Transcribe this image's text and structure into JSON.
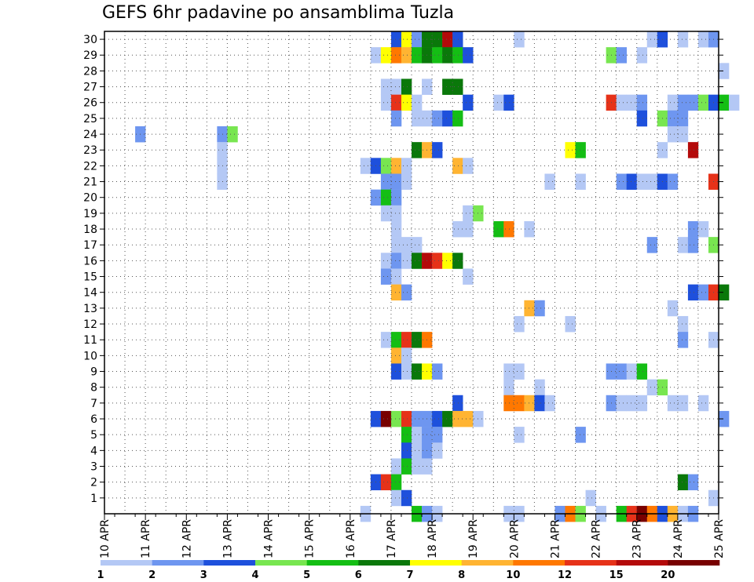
{
  "chart_data": {
    "type": "heatmap",
    "title": "GEFS 6hr padavine po ansamblima Tuzla",
    "xlabel": "",
    "ylabel": "",
    "x_ticks": [
      "10 APR",
      "11 APR",
      "12 APR",
      "13 APR",
      "14 APR",
      "15 APR",
      "16 APR",
      "17 APR",
      "18 APR",
      "19 APR",
      "20 APR",
      "21 APR",
      "22 APR",
      "23 APR",
      "24 APR",
      "25 APR"
    ],
    "x_start_day": 10,
    "steps_per_day": 4,
    "y_ticks": [
      1,
      2,
      3,
      4,
      5,
      6,
      7,
      8,
      9,
      10,
      11,
      12,
      13,
      14,
      15,
      16,
      17,
      18,
      19,
      20,
      21,
      22,
      23,
      24,
      25,
      26,
      27,
      28,
      29,
      30
    ],
    "ylim": [
      0,
      30
    ],
    "grid": true,
    "legend_position": "bottom",
    "colorbar": {
      "labels": [
        "1",
        "2",
        "3",
        "4",
        "5",
        "6",
        "7",
        "8",
        "10",
        "12",
        "15",
        "20"
      ],
      "colors": [
        "#b4c8f5",
        "#6e96f0",
        "#1e50dc",
        "#78e650",
        "#14be14",
        "#0a780a",
        "#ffff00",
        "#ffb432",
        "#ff7800",
        "#e63219",
        "#b40a0a",
        "#780000"
      ]
    },
    "cells": [
      {
        "d": 17.0,
        "m": 30,
        "c": 3
      },
      {
        "d": 17.25,
        "m": 30,
        "c": 7
      },
      {
        "d": 17.5,
        "m": 30,
        "c": 2
      },
      {
        "d": 17.75,
        "m": 30,
        "c": 6
      },
      {
        "d": 18.0,
        "m": 30,
        "c": 6
      },
      {
        "d": 18.25,
        "m": 30,
        "c": 11
      },
      {
        "d": 18.5,
        "m": 30,
        "c": 3
      },
      {
        "d": 20.0,
        "m": 30,
        "c": 1
      },
      {
        "d": 23.25,
        "m": 30,
        "c": 1
      },
      {
        "d": 23.5,
        "m": 30,
        "c": 3
      },
      {
        "d": 24.0,
        "m": 30,
        "c": 1
      },
      {
        "d": 24.5,
        "m": 30,
        "c": 1
      },
      {
        "d": 24.75,
        "m": 30,
        "c": 2
      },
      {
        "d": 16.5,
        "m": 29,
        "c": 1
      },
      {
        "d": 16.75,
        "m": 29,
        "c": 7
      },
      {
        "d": 17.0,
        "m": 29,
        "c": 9
      },
      {
        "d": 17.25,
        "m": 29,
        "c": 8
      },
      {
        "d": 17.5,
        "m": 29,
        "c": 5
      },
      {
        "d": 17.75,
        "m": 29,
        "c": 6
      },
      {
        "d": 18.0,
        "m": 29,
        "c": 5
      },
      {
        "d": 18.25,
        "m": 29,
        "c": 6
      },
      {
        "d": 18.5,
        "m": 29,
        "c": 5
      },
      {
        "d": 18.75,
        "m": 29,
        "c": 3
      },
      {
        "d": 22.25,
        "m": 29,
        "c": 4
      },
      {
        "d": 22.5,
        "m": 29,
        "c": 2
      },
      {
        "d": 23.0,
        "m": 29,
        "c": 1
      },
      {
        "d": 25.0,
        "m": 28,
        "c": 1
      },
      {
        "d": 16.75,
        "m": 27,
        "c": 1
      },
      {
        "d": 17.0,
        "m": 27,
        "c": 1
      },
      {
        "d": 17.25,
        "m": 27,
        "c": 6
      },
      {
        "d": 17.75,
        "m": 27,
        "c": 1
      },
      {
        "d": 18.25,
        "m": 27,
        "c": 6
      },
      {
        "d": 18.5,
        "m": 27,
        "c": 6
      },
      {
        "d": 16.75,
        "m": 26,
        "c": 1
      },
      {
        "d": 17.0,
        "m": 26,
        "c": 10
      },
      {
        "d": 17.25,
        "m": 26,
        "c": 7
      },
      {
        "d": 17.5,
        "m": 26,
        "c": 1
      },
      {
        "d": 18.75,
        "m": 26,
        "c": 3
      },
      {
        "d": 19.5,
        "m": 26,
        "c": 1
      },
      {
        "d": 19.75,
        "m": 26,
        "c": 3
      },
      {
        "d": 22.25,
        "m": 26,
        "c": 10
      },
      {
        "d": 22.5,
        "m": 26,
        "c": 1
      },
      {
        "d": 22.75,
        "m": 26,
        "c": 1
      },
      {
        "d": 23.0,
        "m": 26,
        "c": 2
      },
      {
        "d": 23.75,
        "m": 26,
        "c": 1
      },
      {
        "d": 24.0,
        "m": 26,
        "c": 2
      },
      {
        "d": 24.25,
        "m": 26,
        "c": 2
      },
      {
        "d": 24.5,
        "m": 26,
        "c": 4
      },
      {
        "d": 24.75,
        "m": 26,
        "c": 3
      },
      {
        "d": 25.0,
        "m": 26,
        "c": 5
      },
      {
        "d": 25.25,
        "m": 26,
        "c": 1
      },
      {
        "d": 17.0,
        "m": 25,
        "c": 2
      },
      {
        "d": 17.5,
        "m": 25,
        "c": 1
      },
      {
        "d": 17.75,
        "m": 25,
        "c": 1
      },
      {
        "d": 18.0,
        "m": 25,
        "c": 2
      },
      {
        "d": 18.25,
        "m": 25,
        "c": 3
      },
      {
        "d": 18.5,
        "m": 25,
        "c": 5
      },
      {
        "d": 23.0,
        "m": 25,
        "c": 3
      },
      {
        "d": 23.5,
        "m": 25,
        "c": 4
      },
      {
        "d": 23.75,
        "m": 25,
        "c": 2
      },
      {
        "d": 24.0,
        "m": 25,
        "c": 2
      },
      {
        "d": 10.75,
        "m": 24,
        "c": 2
      },
      {
        "d": 12.75,
        "m": 24,
        "c": 2
      },
      {
        "d": 13.0,
        "m": 24,
        "c": 4
      },
      {
        "d": 23.75,
        "m": 24,
        "c": 1
      },
      {
        "d": 24.0,
        "m": 24,
        "c": 1
      },
      {
        "d": 12.75,
        "m": 23,
        "c": 1
      },
      {
        "d": 17.5,
        "m": 23,
        "c": 6
      },
      {
        "d": 17.75,
        "m": 23,
        "c": 8
      },
      {
        "d": 18.0,
        "m": 23,
        "c": 3
      },
      {
        "d": 21.25,
        "m": 23,
        "c": 7
      },
      {
        "d": 21.5,
        "m": 23,
        "c": 5
      },
      {
        "d": 23.5,
        "m": 23,
        "c": 1
      },
      {
        "d": 24.25,
        "m": 23,
        "c": 11
      },
      {
        "d": 12.75,
        "m": 22,
        "c": 1
      },
      {
        "d": 16.25,
        "m": 22,
        "c": 1
      },
      {
        "d": 16.5,
        "m": 22,
        "c": 3
      },
      {
        "d": 16.75,
        "m": 22,
        "c": 4
      },
      {
        "d": 17.0,
        "m": 22,
        "c": 8
      },
      {
        "d": 17.25,
        "m": 22,
        "c": 1
      },
      {
        "d": 18.5,
        "m": 22,
        "c": 8
      },
      {
        "d": 18.75,
        "m": 22,
        "c": 1
      },
      {
        "d": 12.75,
        "m": 21,
        "c": 1
      },
      {
        "d": 16.75,
        "m": 21,
        "c": 2
      },
      {
        "d": 17.0,
        "m": 21,
        "c": 2
      },
      {
        "d": 17.25,
        "m": 21,
        "c": 1
      },
      {
        "d": 20.75,
        "m": 21,
        "c": 1
      },
      {
        "d": 21.5,
        "m": 21,
        "c": 1
      },
      {
        "d": 22.5,
        "m": 21,
        "c": 2
      },
      {
        "d": 22.75,
        "m": 21,
        "c": 3
      },
      {
        "d": 23.0,
        "m": 21,
        "c": 1
      },
      {
        "d": 23.25,
        "m": 21,
        "c": 1
      },
      {
        "d": 23.5,
        "m": 21,
        "c": 3
      },
      {
        "d": 23.75,
        "m": 21,
        "c": 2
      },
      {
        "d": 24.75,
        "m": 21,
        "c": 10
      },
      {
        "d": 16.5,
        "m": 20,
        "c": 2
      },
      {
        "d": 16.75,
        "m": 20,
        "c": 5
      },
      {
        "d": 17.0,
        "m": 20,
        "c": 2
      },
      {
        "d": 16.75,
        "m": 19,
        "c": 1
      },
      {
        "d": 17.0,
        "m": 19,
        "c": 1
      },
      {
        "d": 18.75,
        "m": 19,
        "c": 1
      },
      {
        "d": 19.0,
        "m": 19,
        "c": 4
      },
      {
        "d": 17.0,
        "m": 18,
        "c": 1
      },
      {
        "d": 18.5,
        "m": 18,
        "c": 1
      },
      {
        "d": 18.75,
        "m": 18,
        "c": 1
      },
      {
        "d": 19.5,
        "m": 18,
        "c": 5
      },
      {
        "d": 19.75,
        "m": 18,
        "c": 9
      },
      {
        "d": 20.25,
        "m": 18,
        "c": 1
      },
      {
        "d": 24.25,
        "m": 18,
        "c": 2
      },
      {
        "d": 24.5,
        "m": 18,
        "c": 1
      },
      {
        "d": 17.0,
        "m": 17,
        "c": 1
      },
      {
        "d": 17.25,
        "m": 17,
        "c": 1
      },
      {
        "d": 17.5,
        "m": 17,
        "c": 1
      },
      {
        "d": 23.25,
        "m": 17,
        "c": 2
      },
      {
        "d": 24.0,
        "m": 17,
        "c": 1
      },
      {
        "d": 24.25,
        "m": 17,
        "c": 2
      },
      {
        "d": 24.75,
        "m": 17,
        "c": 4
      },
      {
        "d": 16.75,
        "m": 16,
        "c": 1
      },
      {
        "d": 17.0,
        "m": 16,
        "c": 2
      },
      {
        "d": 17.25,
        "m": 16,
        "c": 1
      },
      {
        "d": 17.5,
        "m": 16,
        "c": 6
      },
      {
        "d": 17.75,
        "m": 16,
        "c": 11
      },
      {
        "d": 18.0,
        "m": 16,
        "c": 10
      },
      {
        "d": 18.25,
        "m": 16,
        "c": 7
      },
      {
        "d": 18.5,
        "m": 16,
        "c": 6
      },
      {
        "d": 16.75,
        "m": 15,
        "c": 2
      },
      {
        "d": 17.0,
        "m": 15,
        "c": 1
      },
      {
        "d": 18.75,
        "m": 15,
        "c": 1
      },
      {
        "d": 17.0,
        "m": 14,
        "c": 8
      },
      {
        "d": 17.25,
        "m": 14,
        "c": 2
      },
      {
        "d": 24.25,
        "m": 14,
        "c": 3
      },
      {
        "d": 24.5,
        "m": 14,
        "c": 2
      },
      {
        "d": 24.75,
        "m": 14,
        "c": 10
      },
      {
        "d": 25.0,
        "m": 14,
        "c": 6
      },
      {
        "d": 20.25,
        "m": 13,
        "c": 8
      },
      {
        "d": 20.5,
        "m": 13,
        "c": 2
      },
      {
        "d": 23.75,
        "m": 13,
        "c": 1
      },
      {
        "d": 20.0,
        "m": 12,
        "c": 1
      },
      {
        "d": 21.25,
        "m": 12,
        "c": 1
      },
      {
        "d": 24.0,
        "m": 12,
        "c": 1
      },
      {
        "d": 16.75,
        "m": 11,
        "c": 1
      },
      {
        "d": 17.0,
        "m": 11,
        "c": 5
      },
      {
        "d": 17.25,
        "m": 11,
        "c": 10
      },
      {
        "d": 17.5,
        "m": 11,
        "c": 6
      },
      {
        "d": 17.75,
        "m": 11,
        "c": 9
      },
      {
        "d": 24.0,
        "m": 11,
        "c": 2
      },
      {
        "d": 24.75,
        "m": 11,
        "c": 1
      },
      {
        "d": 17.0,
        "m": 10,
        "c": 8
      },
      {
        "d": 17.25,
        "m": 10,
        "c": 1
      },
      {
        "d": 17.0,
        "m": 9,
        "c": 3
      },
      {
        "d": 17.25,
        "m": 9,
        "c": 1
      },
      {
        "d": 17.5,
        "m": 9,
        "c": 6
      },
      {
        "d": 17.75,
        "m": 9,
        "c": 7
      },
      {
        "d": 18.0,
        "m": 9,
        "c": 2
      },
      {
        "d": 19.75,
        "m": 9,
        "c": 1
      },
      {
        "d": 20.0,
        "m": 9,
        "c": 1
      },
      {
        "d": 22.25,
        "m": 9,
        "c": 2
      },
      {
        "d": 22.5,
        "m": 9,
        "c": 2
      },
      {
        "d": 22.75,
        "m": 9,
        "c": 1
      },
      {
        "d": 23.0,
        "m": 9,
        "c": 5
      },
      {
        "d": 19.75,
        "m": 8,
        "c": 1
      },
      {
        "d": 20.5,
        "m": 8,
        "c": 1
      },
      {
        "d": 23.25,
        "m": 8,
        "c": 1
      },
      {
        "d": 23.5,
        "m": 8,
        "c": 4
      },
      {
        "d": 18.5,
        "m": 7,
        "c": 3
      },
      {
        "d": 19.75,
        "m": 7,
        "c": 9
      },
      {
        "d": 20.0,
        "m": 7,
        "c": 9
      },
      {
        "d": 20.25,
        "m": 7,
        "c": 8
      },
      {
        "d": 20.5,
        "m": 7,
        "c": 3
      },
      {
        "d": 20.75,
        "m": 7,
        "c": 1
      },
      {
        "d": 22.25,
        "m": 7,
        "c": 2
      },
      {
        "d": 22.5,
        "m": 7,
        "c": 1
      },
      {
        "d": 22.75,
        "m": 7,
        "c": 1
      },
      {
        "d": 23.0,
        "m": 7,
        "c": 1
      },
      {
        "d": 23.75,
        "m": 7,
        "c": 1
      },
      {
        "d": 24.0,
        "m": 7,
        "c": 1
      },
      {
        "d": 24.5,
        "m": 7,
        "c": 1
      },
      {
        "d": 16.5,
        "m": 6,
        "c": 3
      },
      {
        "d": 16.75,
        "m": 6,
        "c": 12
      },
      {
        "d": 17.0,
        "m": 6,
        "c": 4
      },
      {
        "d": 17.25,
        "m": 6,
        "c": 10
      },
      {
        "d": 17.5,
        "m": 6,
        "c": 2
      },
      {
        "d": 17.75,
        "m": 6,
        "c": 2
      },
      {
        "d": 18.0,
        "m": 6,
        "c": 3
      },
      {
        "d": 18.25,
        "m": 6,
        "c": 6
      },
      {
        "d": 18.5,
        "m": 6,
        "c": 8
      },
      {
        "d": 18.75,
        "m": 6,
        "c": 8
      },
      {
        "d": 19.0,
        "m": 6,
        "c": 1
      },
      {
        "d": 25.0,
        "m": 6,
        "c": 2
      },
      {
        "d": 17.25,
        "m": 5,
        "c": 5
      },
      {
        "d": 17.5,
        "m": 5,
        "c": 1
      },
      {
        "d": 17.75,
        "m": 5,
        "c": 2
      },
      {
        "d": 18.0,
        "m": 5,
        "c": 2
      },
      {
        "d": 20.0,
        "m": 5,
        "c": 1
      },
      {
        "d": 21.5,
        "m": 5,
        "c": 2
      },
      {
        "d": 17.25,
        "m": 4,
        "c": 3
      },
      {
        "d": 17.5,
        "m": 4,
        "c": 1
      },
      {
        "d": 17.75,
        "m": 4,
        "c": 2
      },
      {
        "d": 18.0,
        "m": 4,
        "c": 1
      },
      {
        "d": 17.0,
        "m": 3,
        "c": 1
      },
      {
        "d": 17.25,
        "m": 3,
        "c": 5
      },
      {
        "d": 17.5,
        "m": 3,
        "c": 1
      },
      {
        "d": 17.75,
        "m": 3,
        "c": 1
      },
      {
        "d": 16.5,
        "m": 2,
        "c": 3
      },
      {
        "d": 16.75,
        "m": 2,
        "c": 10
      },
      {
        "d": 17.0,
        "m": 2,
        "c": 5
      },
      {
        "d": 24.0,
        "m": 2,
        "c": 6
      },
      {
        "d": 24.25,
        "m": 2,
        "c": 2
      },
      {
        "d": 17.0,
        "m": 1,
        "c": 1
      },
      {
        "d": 17.25,
        "m": 1,
        "c": 3
      },
      {
        "d": 21.75,
        "m": 1,
        "c": 1
      },
      {
        "d": 24.75,
        "m": 1,
        "c": 1
      },
      {
        "d": 16.25,
        "m": 0,
        "c": 1
      },
      {
        "d": 17.5,
        "m": 0,
        "c": 5
      },
      {
        "d": 17.75,
        "m": 0,
        "c": 2
      },
      {
        "d": 18.0,
        "m": 0,
        "c": 1
      },
      {
        "d": 19.75,
        "m": 0,
        "c": 1
      },
      {
        "d": 20.0,
        "m": 0,
        "c": 1
      },
      {
        "d": 21.0,
        "m": 0,
        "c": 2
      },
      {
        "d": 21.25,
        "m": 0,
        "c": 9
      },
      {
        "d": 21.5,
        "m": 0,
        "c": 4
      },
      {
        "d": 22.0,
        "m": 0,
        "c": 1
      },
      {
        "d": 22.5,
        "m": 0,
        "c": 5
      },
      {
        "d": 22.75,
        "m": 0,
        "c": 10
      },
      {
        "d": 23.0,
        "m": 0,
        "c": 12
      },
      {
        "d": 23.25,
        "m": 0,
        "c": 9
      },
      {
        "d": 23.5,
        "m": 0,
        "c": 3
      },
      {
        "d": 23.75,
        "m": 0,
        "c": 8
      },
      {
        "d": 24.0,
        "m": 0,
        "c": 1
      },
      {
        "d": 24.25,
        "m": 0,
        "c": 2
      }
    ]
  }
}
